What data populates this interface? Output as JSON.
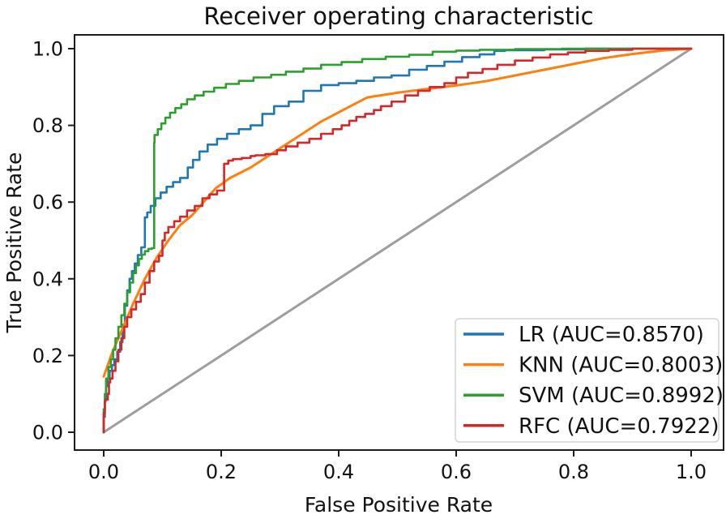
{
  "chart_data": {
    "type": "line",
    "title": "Receiver operating characteristic",
    "xlabel": "False Positive Rate",
    "ylabel": "True Positive Rate",
    "xlim": [
      -0.05,
      1.055
    ],
    "ylim": [
      -0.047,
      1.036
    ],
    "grid": false,
    "legend_position": "lower right",
    "x_ticks": [
      "0.0",
      "0.2",
      "0.4",
      "0.6",
      "0.8",
      "1.0"
    ],
    "y_ticks": [
      "0.0",
      "0.2",
      "0.4",
      "0.6",
      "0.8",
      "1.0"
    ],
    "axis_color": "#1c1c1c",
    "legend_border_color": "#d4d4d4",
    "series": [
      {
        "name": "LR (AUC=0.8570)",
        "model": "LR",
        "auc": 0.857,
        "color": "#1f77b4",
        "style": "steps",
        "in_legend": true,
        "points": [
          [
            0,
            0
          ],
          [
            0.002,
            0.04
          ],
          [
            0.004,
            0.085
          ],
          [
            0.007,
            0.12
          ],
          [
            0.01,
            0.14
          ],
          [
            0.014,
            0.16
          ],
          [
            0.018,
            0.175
          ],
          [
            0.023,
            0.19
          ],
          [
            0.028,
            0.21
          ],
          [
            0.032,
            0.235
          ],
          [
            0.036,
            0.28
          ],
          [
            0.04,
            0.33
          ],
          [
            0.044,
            0.37
          ],
          [
            0.048,
            0.4
          ],
          [
            0.053,
            0.42
          ],
          [
            0.058,
            0.44
          ],
          [
            0.064,
            0.462
          ],
          [
            0.07,
            0.482
          ],
          [
            0.074,
            0.56
          ],
          [
            0.08,
            0.573
          ],
          [
            0.088,
            0.59
          ],
          [
            0.097,
            0.61
          ],
          [
            0.107,
            0.625
          ],
          [
            0.118,
            0.64
          ],
          [
            0.13,
            0.652
          ],
          [
            0.143,
            0.663
          ],
          [
            0.152,
            0.69
          ],
          [
            0.163,
            0.71
          ],
          [
            0.177,
            0.732
          ],
          [
            0.193,
            0.75
          ],
          [
            0.21,
            0.765
          ],
          [
            0.23,
            0.778
          ],
          [
            0.25,
            0.79
          ],
          [
            0.27,
            0.8
          ],
          [
            0.29,
            0.83
          ],
          [
            0.315,
            0.85
          ],
          [
            0.34,
            0.862
          ],
          [
            0.37,
            0.89
          ],
          [
            0.4,
            0.905
          ],
          [
            0.43,
            0.91
          ],
          [
            0.46,
            0.916
          ],
          [
            0.49,
            0.925
          ],
          [
            0.52,
            0.93
          ],
          [
            0.55,
            0.945
          ],
          [
            0.58,
            0.955
          ],
          [
            0.61,
            0.966
          ],
          [
            0.64,
            0.978
          ],
          [
            0.665,
            0.985
          ],
          [
            0.683,
            0.994
          ],
          [
            0.75,
            0.996
          ],
          [
            0.82,
            0.998
          ],
          [
            0.9,
            1.0
          ],
          [
            1,
            1
          ]
        ]
      },
      {
        "name": "KNN (AUC=0.8003)",
        "model": "KNN",
        "auc": 0.8003,
        "color": "#ff7f0e",
        "style": "linear",
        "in_legend": true,
        "points": [
          [
            0,
            0.145
          ],
          [
            0.015,
            0.21
          ],
          [
            0.032,
            0.27
          ],
          [
            0.05,
            0.335
          ],
          [
            0.07,
            0.4
          ],
          [
            0.09,
            0.455
          ],
          [
            0.11,
            0.5
          ],
          [
            0.13,
            0.54
          ],
          [
            0.15,
            0.565
          ],
          [
            0.17,
            0.6
          ],
          [
            0.19,
            0.635
          ],
          [
            0.214,
            0.662
          ],
          [
            0.25,
            0.69
          ],
          [
            0.31,
            0.75
          ],
          [
            0.37,
            0.81
          ],
          [
            0.42,
            0.85
          ],
          [
            0.449,
            0.873
          ],
          [
            0.5,
            0.885
          ],
          [
            0.55,
            0.895
          ],
          [
            0.6,
            0.904
          ],
          [
            0.65,
            0.915
          ],
          [
            0.7,
            0.93
          ],
          [
            0.75,
            0.945
          ],
          [
            0.8,
            0.96
          ],
          [
            0.85,
            0.975
          ],
          [
            0.9,
            0.986
          ],
          [
            0.95,
            0.995
          ],
          [
            1,
            1
          ]
        ]
      },
      {
        "name": "SVM (AUC=0.8992)",
        "model": "SVM",
        "auc": 0.8992,
        "color": "#2ca02c",
        "style": "steps",
        "in_legend": true,
        "points": [
          [
            0,
            0
          ],
          [
            0.002,
            0.06
          ],
          [
            0.004,
            0.1
          ],
          [
            0.008,
            0.14
          ],
          [
            0.012,
            0.17
          ],
          [
            0.016,
            0.19
          ],
          [
            0.02,
            0.215
          ],
          [
            0.025,
            0.245
          ],
          [
            0.03,
            0.275
          ],
          [
            0.035,
            0.305
          ],
          [
            0.04,
            0.335
          ],
          [
            0.045,
            0.365
          ],
          [
            0.05,
            0.39
          ],
          [
            0.055,
            0.415
          ],
          [
            0.06,
            0.435
          ],
          [
            0.065,
            0.452
          ],
          [
            0.07,
            0.463
          ],
          [
            0.076,
            0.472
          ],
          [
            0.082,
            0.478
          ],
          [
            0.086,
            0.48
          ],
          [
            0.0865,
            0.755
          ],
          [
            0.092,
            0.775
          ],
          [
            0.098,
            0.79
          ],
          [
            0.105,
            0.805
          ],
          [
            0.113,
            0.82
          ],
          [
            0.122,
            0.833
          ],
          [
            0.132,
            0.845
          ],
          [
            0.142,
            0.855
          ],
          [
            0.155,
            0.868
          ],
          [
            0.17,
            0.878
          ],
          [
            0.188,
            0.888
          ],
          [
            0.208,
            0.898
          ],
          [
            0.23,
            0.908
          ],
          [
            0.255,
            0.916
          ],
          [
            0.285,
            0.925
          ],
          [
            0.31,
            0.932
          ],
          [
            0.34,
            0.94
          ],
          [
            0.37,
            0.948
          ],
          [
            0.405,
            0.958
          ],
          [
            0.44,
            0.965
          ],
          [
            0.48,
            0.973
          ],
          [
            0.52,
            0.979
          ],
          [
            0.56,
            0.984
          ],
          [
            0.6,
            0.992
          ],
          [
            0.64,
            0.995
          ],
          [
            0.7,
            0.997
          ],
          [
            0.78,
            0.999
          ],
          [
            0.86,
            1.0
          ],
          [
            1,
            1
          ]
        ]
      },
      {
        "name": "RFC (AUC=0.7922)",
        "model": "RFC",
        "auc": 0.7922,
        "color": "#d62728",
        "style": "steps",
        "in_legend": true,
        "points": [
          [
            0,
            0
          ],
          [
            0.002,
            0.05
          ],
          [
            0.003,
            0.08
          ],
          [
            0.007,
            0.085
          ],
          [
            0.009,
            0.1
          ],
          [
            0.011,
            0.13
          ],
          [
            0.015,
            0.14
          ],
          [
            0.02,
            0.16
          ],
          [
            0.025,
            0.185
          ],
          [
            0.03,
            0.215
          ],
          [
            0.035,
            0.245
          ],
          [
            0.04,
            0.275
          ],
          [
            0.047,
            0.3
          ],
          [
            0.055,
            0.32
          ],
          [
            0.063,
            0.34
          ],
          [
            0.07,
            0.36
          ],
          [
            0.078,
            0.39
          ],
          [
            0.086,
            0.42
          ],
          [
            0.094,
            0.445
          ],
          [
            0.1,
            0.46
          ],
          [
            0.104,
            0.5
          ],
          [
            0.11,
            0.52
          ],
          [
            0.12,
            0.535
          ],
          [
            0.13,
            0.55
          ],
          [
            0.142,
            0.562
          ],
          [
            0.155,
            0.578
          ],
          [
            0.168,
            0.59
          ],
          [
            0.18,
            0.61
          ],
          [
            0.193,
            0.62
          ],
          [
            0.205,
            0.63
          ],
          [
            0.212,
            0.7
          ],
          [
            0.22,
            0.708
          ],
          [
            0.235,
            0.712
          ],
          [
            0.25,
            0.715
          ],
          [
            0.258,
            0.72
          ],
          [
            0.275,
            0.722
          ],
          [
            0.295,
            0.725
          ],
          [
            0.31,
            0.735
          ],
          [
            0.33,
            0.745
          ],
          [
            0.35,
            0.755
          ],
          [
            0.37,
            0.765
          ],
          [
            0.39,
            0.778
          ],
          [
            0.405,
            0.79
          ],
          [
            0.418,
            0.8
          ],
          [
            0.43,
            0.812
          ],
          [
            0.445,
            0.822
          ],
          [
            0.46,
            0.83
          ],
          [
            0.472,
            0.84
          ],
          [
            0.49,
            0.85
          ],
          [
            0.513,
            0.862
          ],
          [
            0.535,
            0.878
          ],
          [
            0.555,
            0.89
          ],
          [
            0.58,
            0.9
          ],
          [
            0.6,
            0.91
          ],
          [
            0.62,
            0.925
          ],
          [
            0.645,
            0.937
          ],
          [
            0.67,
            0.947
          ],
          [
            0.7,
            0.958
          ],
          [
            0.73,
            0.969
          ],
          [
            0.76,
            0.977
          ],
          [
            0.79,
            0.985
          ],
          [
            0.82,
            0.99
          ],
          [
            0.86,
            0.994
          ],
          [
            0.9,
            0.997
          ],
          [
            1,
            1
          ]
        ]
      },
      {
        "name": "chance-diagonal",
        "model": "chance",
        "color": "#9e9e9e",
        "style": "linear",
        "in_legend": false,
        "points": [
          [
            0,
            0
          ],
          [
            1,
            1
          ]
        ]
      }
    ]
  }
}
